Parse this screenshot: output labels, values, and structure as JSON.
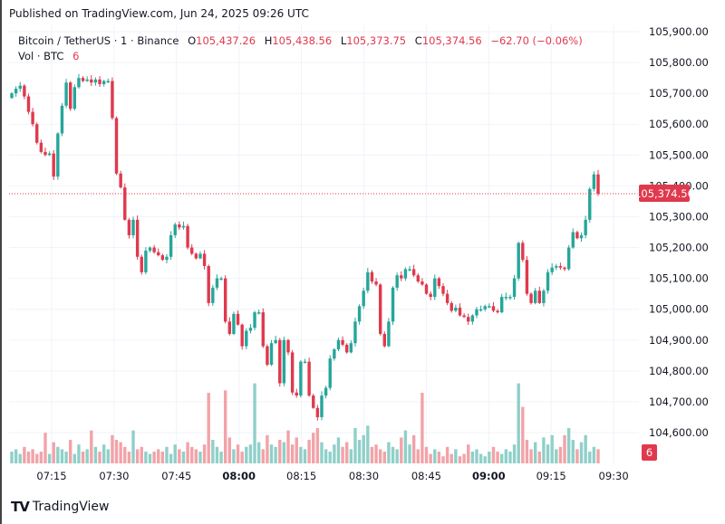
{
  "header": {
    "published": "Published on TradingView.com, Jun 24, 2025 09:26 UTC"
  },
  "legend": {
    "symbol": "Bitcoin / TetherUS · 1 · Binance",
    "open_label": "O",
    "open": "105,437.26",
    "high_label": "H",
    "high": "105,438.56",
    "low_label": "L",
    "low": "105,373.75",
    "close_label": "C",
    "close": "105,374.56",
    "change": "−62.70 (−0.06%)",
    "volume_label": "Vol · BTC",
    "volume": "6"
  },
  "colors": {
    "up": "#26a69a",
    "down": "#e0394d",
    "up_vol": "#8fd0c9",
    "down_vol": "#f2a3a8",
    "grid": "#f0f3fa"
  },
  "price_axis": {
    "ticks": [
      "105,900.00",
      "105,800.00",
      "105,700.00",
      "105,600.00",
      "105,500.00",
      "105,400.00",
      "105,300.00",
      "105,200.00",
      "105,100.00",
      "105,000.00",
      "104,900.00",
      "104,800.00",
      "104,700.00",
      "104,600.00"
    ],
    "current_price": "105,374.56",
    "current_volume": "6"
  },
  "time_axis": {
    "ticks": [
      {
        "label": "07:15",
        "bold": false
      },
      {
        "label": "07:30",
        "bold": false
      },
      {
        "label": "07:45",
        "bold": false
      },
      {
        "label": "08:00",
        "bold": true
      },
      {
        "label": "08:15",
        "bold": false
      },
      {
        "label": "08:30",
        "bold": false
      },
      {
        "label": "08:45",
        "bold": false
      },
      {
        "label": "09:00",
        "bold": true
      },
      {
        "label": "09:15",
        "bold": false
      },
      {
        "label": "09:30",
        "bold": false
      }
    ]
  },
  "chart_data": {
    "type": "candlestick",
    "ylim": [
      104600,
      105900
    ],
    "closes": [
      105700,
      105715,
      105725,
      105690,
      105640,
      105600,
      105540,
      105510,
      105500,
      105505,
      105430,
      105570,
      105660,
      105735,
      105650,
      105720,
      105750,
      105740,
      105745,
      105735,
      105745,
      105730,
      105740,
      105740,
      105620,
      105440,
      105395,
      105290,
      105240,
      105290,
      105170,
      105120,
      105190,
      105200,
      105185,
      105175,
      105160,
      105170,
      105240,
      105275,
      105265,
      105270,
      105200,
      105180,
      105165,
      105180,
      105140,
      105020,
      105070,
      105100,
      105100,
      104960,
      104920,
      104985,
      104950,
      104880,
      104930,
      104940,
      104990,
      104990,
      104880,
      104820,
      104890,
      104900,
      104760,
      104900,
      104860,
      104730,
      104720,
      104830,
      104830,
      104720,
      104680,
      104650,
      104720,
      104745,
      104840,
      104870,
      104900,
      104885,
      104860,
      104890,
      104960,
      105010,
      105060,
      105120,
      105090,
      105080,
      104920,
      104880,
      104960,
      105070,
      105110,
      105100,
      105130,
      105130,
      105110,
      105090,
      105080,
      105050,
      105040,
      105100,
      105075,
      105050,
      105020,
      104995,
      105005,
      104980,
      104975,
      104960,
      104980,
      105000,
      105000,
      105010,
      105010,
      104995,
      104990,
      105040,
      105040,
      105040,
      105100,
      105215,
      105160,
      105050,
      105020,
      105060,
      105020,
      105060,
      105120,
      105135,
      105140,
      105135,
      105130,
      105200,
      105250,
      105230,
      105240,
      105290,
      105390,
      105437.26,
      105374.56
    ],
    "volumes": [
      5,
      6,
      4,
      7,
      5,
      6,
      4,
      5,
      13,
      4,
      9,
      7,
      6,
      5,
      10,
      4,
      8,
      5,
      6,
      14,
      7,
      5,
      8,
      6,
      12,
      10,
      9,
      7,
      5,
      14,
      6,
      7,
      5,
      4,
      5,
      6,
      5,
      7,
      4,
      8,
      6,
      5,
      9,
      7,
      6,
      5,
      8,
      30,
      10,
      7,
      5,
      31,
      11,
      6,
      8,
      5,
      7,
      8,
      34,
      9,
      6,
      12,
      8,
      7,
      10,
      9,
      14,
      8,
      11,
      7,
      6,
      10,
      13,
      15,
      9,
      6,
      5,
      8,
      11,
      7,
      9,
      6,
      15,
      10,
      12,
      16,
      7,
      8,
      6,
      5,
      9,
      7,
      6,
      11,
      14,
      8,
      12,
      6,
      30,
      7,
      4,
      6,
      5,
      3,
      7,
      4,
      6,
      3,
      4,
      8,
      5,
      6,
      4,
      3,
      5,
      7,
      5,
      4,
      6,
      5,
      8,
      34,
      24,
      10,
      6,
      9,
      5,
      11,
      8,
      12,
      6,
      7,
      12,
      15,
      10,
      6,
      9,
      12,
      5,
      7,
      6
    ]
  },
  "footer": {
    "logo_text": "TradingView"
  }
}
